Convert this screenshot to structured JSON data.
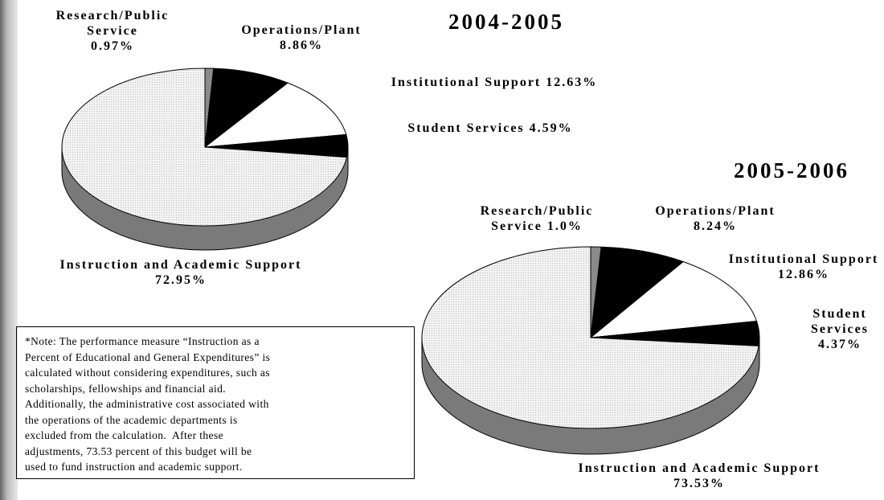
{
  "chart_data": [
    {
      "type": "pie",
      "title": "2004-2005",
      "categories": [
        "Research/Public Service",
        "Operations/Plant",
        "Institutional Support",
        "Student Services",
        "Instruction and Academic Support"
      ],
      "values": [
        0.97,
        8.86,
        12.63,
        4.59,
        72.95
      ],
      "value_labels": [
        "0.97%",
        "8.86%",
        "12.63%",
        "4.59%",
        "72.95%"
      ],
      "colors": [
        "#8a8a8a",
        "#000000",
        "#ffffff",
        "#000000",
        "#eeeeee"
      ]
    },
    {
      "type": "pie",
      "title": "2005-2006",
      "categories": [
        "Research/Public Service",
        "Operations/Plant",
        "Institutional Support",
        "Student Services",
        "Instruction and Academic Support"
      ],
      "values": [
        1.0,
        8.24,
        12.86,
        4.37,
        73.53
      ],
      "value_labels": [
        "1.0%",
        "8.24%",
        "12.86%",
        "4.37%",
        "73.53%"
      ],
      "colors": [
        "#8a8a8a",
        "#000000",
        "#ffffff",
        "#000000",
        "#eeeeee"
      ]
    }
  ],
  "note": [
    "*Note: The performance measure “Instruction as a",
    "Percent of Educational and General Expenditures” is",
    "calculated without considering expenditures, such as",
    "scholarships, fellowships and financial aid.",
    "Additionally, the administrative cost associated with",
    "the operations of the academic departments is",
    "excluded from the calculation.  After these",
    "adjustments, 73.53 percent of this budget will be",
    "used to fund instruction and academic support."
  ]
}
